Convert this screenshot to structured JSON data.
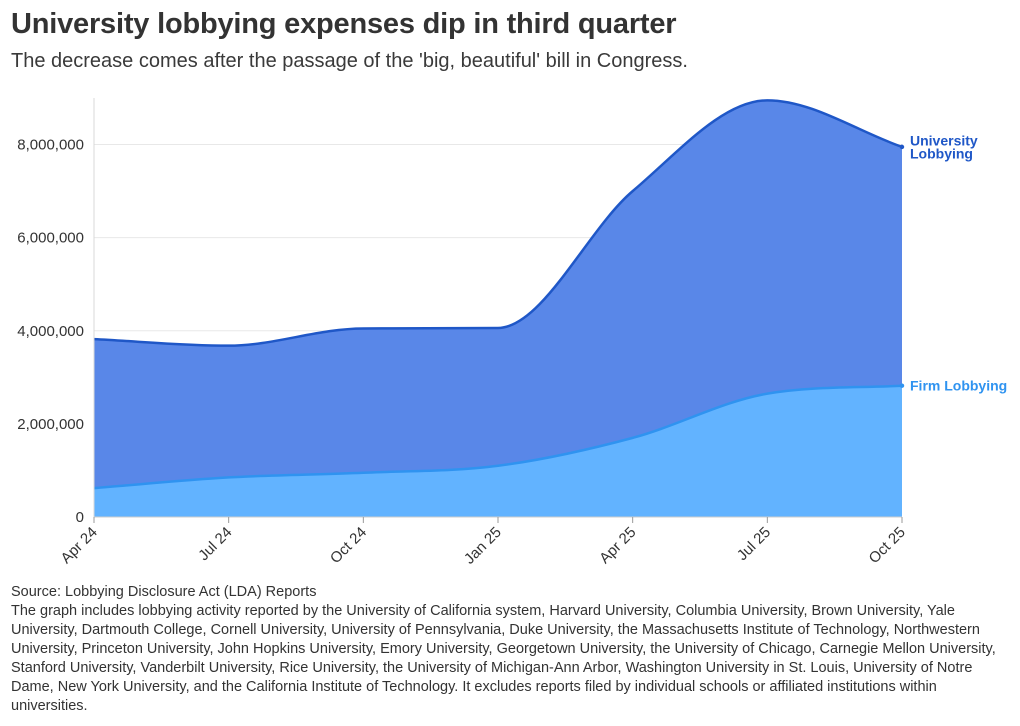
{
  "header": {
    "title": "University lobbying expenses dip in third quarter",
    "subtitle": "The decrease comes after the passage of the 'big, beautiful' bill in Congress."
  },
  "footer": {
    "source": "Source: Lobbying Disclosure Act (LDA) Reports",
    "note": "The graph includes lobbying activity reported by the University of California system, Harvard University, Columbia University, Brown University, Yale University, Dartmouth College, Cornell University, University of Pennsylvania, Duke University, the Massachusetts Institute of Technology, Northwestern University, Princeton University, John Hopkins University, Emory University, Georgetown University, the University of Chicago, Carnegie Mellon University, Stanford University, Vanderbilt University, Rice University, the University of Michigan-Ann Arbor, Washington University in St. Louis, University of Notre Dame, New York University, and the California Institute of Technology. It excludes reports filed by individual schools or affiliated institutions within universities."
  },
  "chart_data": {
    "type": "area",
    "title": "University lobbying expenses dip in third quarter",
    "subtitle": "The decrease comes after the passage of the 'big, beautiful' bill in Congress.",
    "xlabel": "",
    "ylabel": "",
    "categories": [
      "Apr 24",
      "Jul 24",
      "Oct 24",
      "Jan 25",
      "Apr 25",
      "Jul 25",
      "Oct 25"
    ],
    "ylim": [
      0,
      9000000
    ],
    "yticks": [
      0,
      2000000,
      4000000,
      6000000,
      8000000
    ],
    "ytick_labels": [
      "0",
      "2,000,000",
      "4,000,000",
      "6,000,000",
      "8,000,000"
    ],
    "grid": true,
    "legend": "direct labels at right end of each series",
    "series": [
      {
        "name": "University Lobbying",
        "label_lines": [
          "University",
          "Lobbying"
        ],
        "values": [
          3820000,
          3680000,
          4050000,
          4060000,
          7000000,
          8950000,
          7950000
        ],
        "fill_color": "#5987e8",
        "line_color": "#1f57c7",
        "label_color": "#1f57c7"
      },
      {
        "name": "Firm Lobbying",
        "label_lines": [
          "Firm Lobbying"
        ],
        "values": [
          620000,
          850000,
          950000,
          1100000,
          1700000,
          2650000,
          2820000
        ],
        "fill_color": "#62b3ff",
        "line_color": "#2f93f0",
        "label_color": "#2f93f0"
      }
    ]
  }
}
